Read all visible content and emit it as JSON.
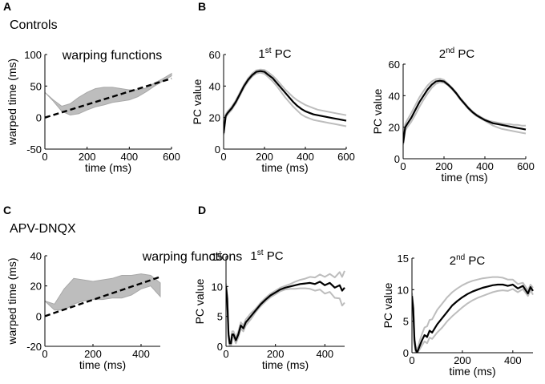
{
  "colors": {
    "band": "#bdbdbd",
    "band_edge": "#a8a8a8",
    "mean": "#000000",
    "identity": "#000000"
  },
  "figure": {
    "group_controls": "Controls",
    "group_apv": "APV-DNQX",
    "panel_labels": {
      "A": "A",
      "B": "B",
      "C": "C",
      "D": "D"
    }
  },
  "chart_data": [
    {
      "id": "A",
      "type": "area",
      "title": "warping functions",
      "xlabel": "time (ms)",
      "ylabel": "warped time (ms)",
      "xlim": [
        0,
        600
      ],
      "ylim": [
        -50,
        100
      ],
      "xticks": [
        0,
        200,
        400,
        600
      ],
      "yticks": [
        -50,
        0,
        50,
        100
      ],
      "series": [
        {
          "name": "warping functions band",
          "x": [
            0,
            40,
            80,
            120,
            160,
            200,
            240,
            280,
            320,
            360,
            400,
            440,
            480,
            520,
            560,
            600
          ],
          "lower": [
            40,
            26,
            10,
            4,
            6,
            12,
            17,
            20,
            24,
            26,
            28,
            33,
            41,
            50,
            58,
            66
          ],
          "upper": [
            40,
            28,
            18,
            22,
            32,
            40,
            46,
            48,
            48,
            46,
            44,
            44,
            47,
            55,
            62,
            70
          ]
        },
        {
          "name": "identity",
          "style": "dashed",
          "x": [
            0,
            600
          ],
          "y": [
            0,
            62
          ]
        }
      ]
    },
    {
      "id": "B1",
      "type": "line",
      "title": "1st PC",
      "title_main": "1",
      "title_sup": "st",
      "title_rest": " PC",
      "xlabel": "time (ms)",
      "ylabel": "PC value",
      "xlim": [
        0,
        600
      ],
      "ylim": [
        0,
        60
      ],
      "xticks": [
        0,
        200,
        400,
        600
      ],
      "yticks": [
        0,
        20,
        40,
        60
      ],
      "series": [
        {
          "name": "mean",
          "x": [
            0,
            10,
            20,
            40,
            60,
            80,
            100,
            120,
            140,
            160,
            180,
            200,
            220,
            240,
            260,
            280,
            300,
            320,
            340,
            360,
            380,
            400,
            420,
            440,
            460,
            480,
            500,
            520,
            540,
            560,
            580,
            600
          ],
          "y": [
            10,
            21,
            23,
            26,
            30,
            35,
            40,
            44,
            47,
            49,
            49.5,
            49,
            47,
            45,
            42,
            39,
            36,
            33,
            30,
            27.5,
            25.5,
            24,
            23,
            22,
            21.5,
            21,
            20.5,
            20,
            19.5,
            19,
            18.5,
            18
          ]
        },
        {
          "name": "upper",
          "x": [
            0,
            10,
            20,
            40,
            60,
            80,
            100,
            120,
            140,
            160,
            180,
            200,
            220,
            240,
            260,
            280,
            300,
            320,
            340,
            360,
            380,
            400,
            420,
            440,
            460,
            480,
            500,
            520,
            540,
            560,
            580,
            600
          ],
          "y": [
            11,
            22,
            24,
            27,
            31,
            36,
            41,
            45,
            48,
            50,
            50.5,
            50.2,
            48.5,
            46.5,
            44,
            41,
            38,
            35.5,
            33,
            31,
            29.5,
            28,
            27,
            26,
            25,
            24.5,
            24,
            23.5,
            23,
            22.5,
            22,
            21.5
          ]
        },
        {
          "name": "lower",
          "x": [
            0,
            10,
            20,
            40,
            60,
            80,
            100,
            120,
            140,
            160,
            180,
            200,
            220,
            240,
            260,
            280,
            300,
            320,
            340,
            360,
            380,
            400,
            420,
            440,
            460,
            480,
            500,
            520,
            540,
            560,
            580,
            600
          ],
          "y": [
            9,
            20,
            22,
            25,
            29,
            34,
            39,
            43,
            46,
            48,
            48.5,
            47.8,
            45.5,
            43,
            40,
            36.5,
            33,
            30,
            27,
            24.5,
            22,
            20.5,
            19.5,
            18.5,
            18,
            17.5,
            17,
            16.5,
            16,
            15.5,
            15,
            14.5
          ]
        }
      ]
    },
    {
      "id": "B2",
      "type": "line",
      "title": "2nd PC",
      "title_main": "2",
      "title_sup": "nd",
      "title_rest": " PC",
      "xlabel": "time (ms)",
      "ylabel": "PC value",
      "xlim": [
        0,
        600
      ],
      "ylim": [
        0,
        60
      ],
      "xticks": [
        0,
        200,
        400,
        600
      ],
      "yticks": [
        0,
        20,
        40,
        60
      ],
      "series": [
        {
          "name": "mean",
          "x": [
            0,
            10,
            20,
            40,
            60,
            80,
            100,
            120,
            140,
            160,
            180,
            200,
            220,
            240,
            260,
            280,
            300,
            320,
            340,
            360,
            380,
            400,
            420,
            440,
            460,
            480,
            500,
            520,
            540,
            560,
            580,
            600
          ],
          "y": [
            10,
            20,
            22,
            26,
            31,
            36,
            40,
            44,
            47,
            49,
            49.5,
            49,
            47,
            44.5,
            41.5,
            38,
            35,
            32,
            29.5,
            27.5,
            26,
            24.5,
            23.5,
            22.5,
            22,
            21.5,
            21,
            20.5,
            20,
            19.5,
            19,
            18.5
          ]
        },
        {
          "name": "upper",
          "x": [
            0,
            10,
            20,
            40,
            60,
            80,
            100,
            120,
            140,
            160,
            180,
            200,
            220,
            240,
            260,
            280,
            300,
            320,
            340,
            360,
            380,
            400,
            420,
            440,
            460,
            480,
            500,
            520,
            540,
            560,
            580,
            600
          ],
          "y": [
            11,
            22,
            24.5,
            29,
            34,
            39,
            43,
            46.5,
            49,
            50.5,
            50.8,
            50,
            47.5,
            45,
            42,
            38.5,
            35.5,
            32.5,
            30,
            28,
            26.5,
            25,
            24,
            23.5,
            23,
            22.5,
            22,
            22,
            21.5,
            21.5,
            21,
            21
          ]
        },
        {
          "name": "lower",
          "x": [
            0,
            10,
            20,
            40,
            60,
            80,
            100,
            120,
            140,
            160,
            180,
            200,
            220,
            240,
            260,
            280,
            300,
            320,
            340,
            360,
            380,
            400,
            420,
            440,
            460,
            480,
            500,
            520,
            540,
            560,
            580,
            600
          ],
          "y": [
            9,
            18,
            20,
            23.5,
            28,
            33,
            37.5,
            41.5,
            45,
            47.5,
            48.5,
            48.2,
            46.5,
            44,
            41,
            37.5,
            34.5,
            31.5,
            29,
            27,
            25.5,
            24,
            22.5,
            21,
            20,
            19,
            18.5,
            18,
            17.5,
            17,
            16.5,
            16
          ]
        }
      ]
    },
    {
      "id": "C",
      "type": "area",
      "title": "warping functions",
      "xlabel": "time (ms)",
      "ylabel": "warped time (ms)",
      "xlim": [
        0,
        480
      ],
      "ylim": [
        -20,
        40
      ],
      "xticks": [
        0,
        200,
        400
      ],
      "yticks": [
        -20,
        0,
        20,
        40
      ],
      "series": [
        {
          "name": "warping functions band",
          "x": [
            0,
            40,
            80,
            120,
            160,
            200,
            240,
            280,
            320,
            360,
            400,
            440,
            480
          ],
          "lower": [
            10,
            4,
            4,
            8,
            10,
            11,
            11,
            12,
            12,
            14,
            18,
            20,
            13
          ],
          "upper": [
            10,
            8,
            18,
            25,
            24,
            23,
            24,
            25,
            27,
            27,
            28,
            27,
            22
          ]
        },
        {
          "name": "identity",
          "style": "dashed",
          "x": [
            0,
            480
          ],
          "y": [
            0,
            26
          ]
        }
      ]
    },
    {
      "id": "D1",
      "type": "line",
      "title": "1st PC",
      "title_main": "1",
      "title_sup": "st",
      "title_rest": " PC",
      "xlabel": "time (ms)",
      "ylabel": "PC value",
      "xlim": [
        0,
        480
      ],
      "ylim": [
        0,
        15
      ],
      "xticks": [
        0,
        200,
        400
      ],
      "yticks": [
        0,
        5,
        10,
        15
      ],
      "series": [
        {
          "name": "mean",
          "x": [
            0,
            5,
            10,
            15,
            20,
            25,
            30,
            40,
            50,
            60,
            70,
            80,
            90,
            100,
            120,
            140,
            160,
            180,
            200,
            220,
            240,
            260,
            280,
            300,
            320,
            340,
            360,
            380,
            400,
            420,
            440,
            460,
            470,
            480
          ],
          "y": [
            10,
            8,
            2,
            0.5,
            0.5,
            2,
            2,
            1,
            2,
            3.5,
            3,
            4,
            4.5,
            5,
            6,
            7,
            7.8,
            8.5,
            9,
            9.5,
            9.8,
            10,
            10.2,
            10.4,
            10.5,
            10.6,
            10.4,
            10.8,
            10.2,
            10.6,
            9.8,
            10.2,
            9.3,
            9.8
          ]
        },
        {
          "name": "upper",
          "x": [
            0,
            5,
            10,
            15,
            20,
            25,
            30,
            40,
            50,
            60,
            70,
            80,
            90,
            100,
            120,
            140,
            160,
            180,
            200,
            220,
            240,
            260,
            280,
            300,
            320,
            340,
            360,
            380,
            400,
            420,
            440,
            460,
            470,
            480
          ],
          "y": [
            10.5,
            8.5,
            2.5,
            1,
            1,
            2.5,
            2.5,
            1.5,
            2.5,
            4,
            3.5,
            4.5,
            5,
            5.5,
            6.3,
            7.3,
            8.1,
            8.8,
            9.3,
            9.8,
            10.1,
            10.4,
            10.8,
            11.1,
            11.3,
            11.6,
            11.5,
            12,
            11.6,
            12.1,
            11.5,
            12.4,
            11.6,
            12.6
          ]
        },
        {
          "name": "lower",
          "x": [
            0,
            5,
            10,
            15,
            20,
            25,
            30,
            40,
            50,
            60,
            70,
            80,
            90,
            100,
            120,
            140,
            160,
            180,
            200,
            220,
            240,
            260,
            280,
            300,
            320,
            340,
            360,
            380,
            400,
            420,
            440,
            460,
            470,
            480
          ],
          "y": [
            9.5,
            7.5,
            1.5,
            0,
            0,
            1.5,
            1.5,
            0.5,
            1.5,
            3,
            2.5,
            3.5,
            4,
            4.5,
            5.7,
            6.7,
            7.5,
            8.2,
            8.7,
            9.2,
            9.5,
            9.6,
            9.6,
            9.7,
            9.7,
            9.6,
            9.3,
            9.5,
            8.8,
            9.1,
            8.1,
            8.0,
            6.8,
            7.3
          ]
        }
      ]
    },
    {
      "id": "D2",
      "type": "line",
      "title": "2nd PC",
      "title_main": "2",
      "title_sup": "nd",
      "title_rest": " PC",
      "xlabel": "time (ms)",
      "ylabel": "PC value",
      "xlim": [
        0,
        480
      ],
      "ylim": [
        0,
        15
      ],
      "xticks": [
        0,
        200,
        400
      ],
      "yticks": [
        0,
        5,
        10,
        15
      ],
      "series": [
        {
          "name": "mean",
          "x": [
            0,
            5,
            10,
            15,
            20,
            25,
            30,
            40,
            50,
            60,
            70,
            80,
            100,
            120,
            140,
            160,
            180,
            200,
            220,
            240,
            260,
            280,
            300,
            320,
            340,
            360,
            380,
            400,
            420,
            440,
            460,
            470,
            480
          ],
          "y": [
            9,
            7,
            2,
            0.5,
            0,
            0.5,
            1,
            2,
            2.8,
            2.5,
            3.5,
            3.2,
            4.5,
            5.5,
            6.5,
            7.5,
            8.2,
            8.8,
            9.3,
            9.7,
            10,
            10.3,
            10.5,
            10.7,
            10.8,
            10.8,
            10.6,
            10.8,
            10.2,
            10.6,
            9.4,
            10.4,
            9.8
          ]
        },
        {
          "name": "upper",
          "x": [
            0,
            5,
            10,
            15,
            20,
            25,
            30,
            40,
            50,
            60,
            70,
            80,
            100,
            120,
            140,
            160,
            180,
            200,
            220,
            240,
            260,
            280,
            300,
            320,
            340,
            360,
            380,
            400,
            420,
            440,
            460,
            470,
            480
          ],
          "y": [
            9.5,
            7.5,
            2.5,
            1,
            0.5,
            1,
            1.8,
            3,
            4,
            4.2,
            5.2,
            5.3,
            6.8,
            7.8,
            8.8,
            9.6,
            10.2,
            10.7,
            11.1,
            11.4,
            11.6,
            11.8,
            11.9,
            12,
            12,
            11.9,
            11.6,
            11.6,
            10.9,
            11.1,
            9.9,
            10.8,
            10.3
          ]
        },
        {
          "name": "lower",
          "x": [
            0,
            5,
            10,
            15,
            20,
            25,
            30,
            40,
            50,
            60,
            70,
            80,
            100,
            120,
            140,
            160,
            180,
            200,
            220,
            240,
            260,
            280,
            300,
            320,
            340,
            360,
            380,
            400,
            420,
            440,
            460,
            470,
            480
          ],
          "y": [
            8.5,
            6.5,
            1.5,
            0,
            0,
            0.2,
            0.5,
            1.2,
            1.8,
            1.5,
            2.4,
            2.2,
            3.2,
            4,
            5,
            5.8,
            6.5,
            7.2,
            7.8,
            8.3,
            8.7,
            9,
            9.3,
            9.6,
            9.8,
            9.9,
            9.8,
            10.1,
            9.6,
            10.1,
            9.0,
            9.9,
            9.2
          ]
        }
      ]
    }
  ]
}
